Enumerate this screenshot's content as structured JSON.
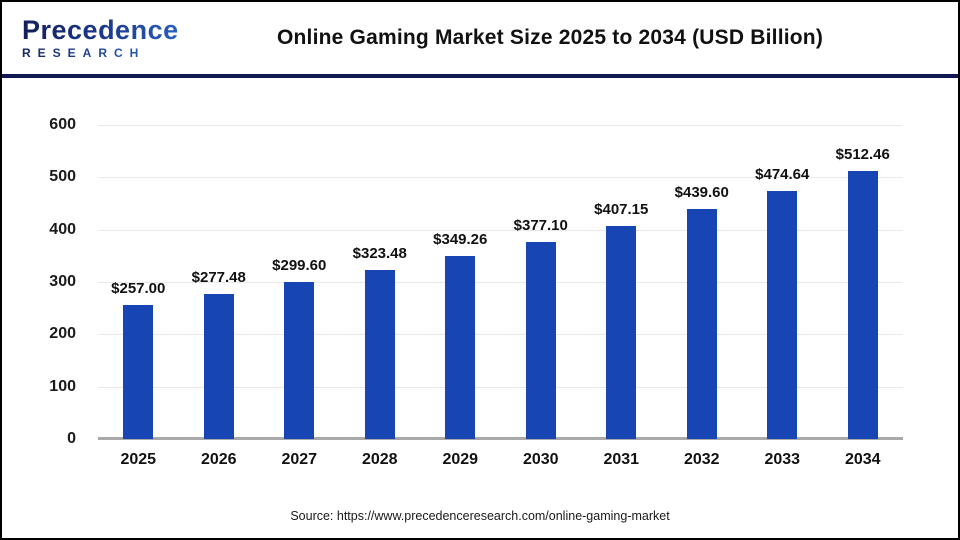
{
  "header": {
    "logo_line1": "Precedence",
    "logo_line2": "RESEARCH",
    "title": "Online Gaming Market Size 2025 to 2034 (USD Billion)"
  },
  "chart_data": {
    "type": "bar",
    "title": "Online Gaming Market Size 2025 to 2034 (USD Billion)",
    "categories": [
      "2025",
      "2026",
      "2027",
      "2028",
      "2029",
      "2030",
      "2031",
      "2032",
      "2033",
      "2034"
    ],
    "values": [
      257.0,
      277.48,
      299.6,
      323.48,
      349.26,
      377.1,
      407.15,
      439.6,
      474.64,
      512.46
    ],
    "value_labels": [
      "$257.00",
      "$277.48",
      "$299.60",
      "$323.48",
      "$349.26",
      "$377.10",
      "$407.15",
      "$439.60",
      "$474.64",
      "$512.46"
    ],
    "xlabel": "",
    "ylabel": "",
    "ylim": [
      0,
      600
    ],
    "yticks": [
      0,
      100,
      200,
      300,
      400,
      500,
      600
    ],
    "grid": true,
    "legend": "none",
    "bar_color": "#1746B4"
  },
  "footer": {
    "source": "Source: https://www.precedenceresearch.com/online-gaming-market"
  },
  "colors": {
    "bar": "#1746B4",
    "header_rule": "#10194f",
    "grid": "#e9e9e9",
    "axis": "#a9a9a9",
    "outer_border": "#000000"
  }
}
